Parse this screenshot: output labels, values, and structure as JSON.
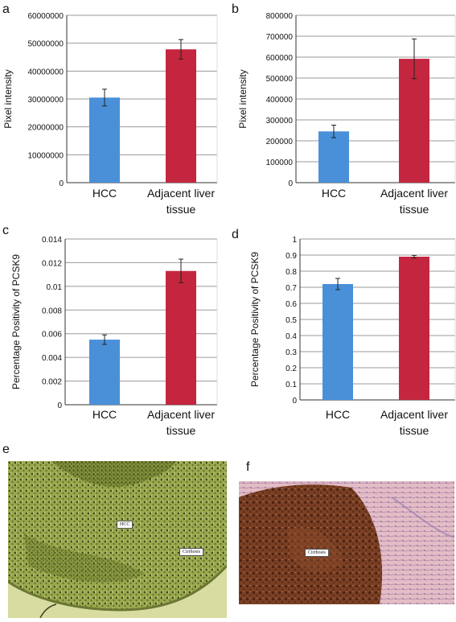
{
  "colors": {
    "hcc": "#4a90d9",
    "adjacent": "#c4263f",
    "grid": "#9a9a9a",
    "axis": "#333333"
  },
  "panels": {
    "a": {
      "letter": "a"
    },
    "b": {
      "letter": "b"
    },
    "c": {
      "letter": "c"
    },
    "d": {
      "letter": "d"
    },
    "e": {
      "letter": "e",
      "label": "HCC",
      "label2": "Cirrhosis"
    },
    "f": {
      "letter": "f",
      "label": "Cirrhosis"
    }
  },
  "chart_data": [
    {
      "id": "a",
      "type": "bar",
      "categories": [
        "HCC",
        [
          "Adjacent liver",
          "tissue"
        ]
      ],
      "values": [
        30500000,
        47800000
      ],
      "errors": [
        3000000,
        3500000
      ],
      "ylabel": "Pixel intensity",
      "ylim": [
        0,
        60000000
      ],
      "yticks": [
        "0",
        "10000000",
        "20000000",
        "30000000",
        "40000000",
        "50000000",
        "60000000"
      ],
      "grid": true
    },
    {
      "id": "b",
      "type": "bar",
      "categories": [
        "HCC",
        [
          "Adjacent liver",
          "tissue"
        ]
      ],
      "values": [
        245000,
        592000
      ],
      "errors": [
        30000,
        95000
      ],
      "ylabel": "Pixel intensity",
      "ylim": [
        0,
        800000
      ],
      "yticks": [
        "0",
        "100000",
        "200000",
        "300000",
        "400000",
        "500000",
        "600000",
        "700000",
        "800000"
      ],
      "grid": true
    },
    {
      "id": "c",
      "type": "bar",
      "categories": [
        "HCC",
        [
          "Adjacent liver",
          "tissue"
        ]
      ],
      "values": [
        0.0055,
        0.0113
      ],
      "errors": [
        0.0004,
        0.001
      ],
      "ylabel": "Percentage Positivity of PCSK9",
      "ylim": [
        0,
        0.014
      ],
      "yticks": [
        "0",
        "0.002",
        "0.004",
        "0.006",
        "0.008",
        "0.01",
        "0.012",
        "0.014"
      ],
      "grid": true
    },
    {
      "id": "d",
      "type": "bar",
      "categories": [
        "HCC",
        [
          "Adjacent liver",
          "tissue"
        ]
      ],
      "values": [
        0.72,
        0.89
      ],
      "errors": [
        0.035,
        0.008
      ],
      "ylabel": "Percentage Positivity of PCSK9",
      "ylim": [
        0,
        1
      ],
      "yticks": [
        "0",
        "0.1",
        "0.2",
        "0.3",
        "0.4",
        "0.5",
        "0.6",
        "0.7",
        "0.8",
        "0.9",
        "1"
      ],
      "grid": true
    }
  ]
}
